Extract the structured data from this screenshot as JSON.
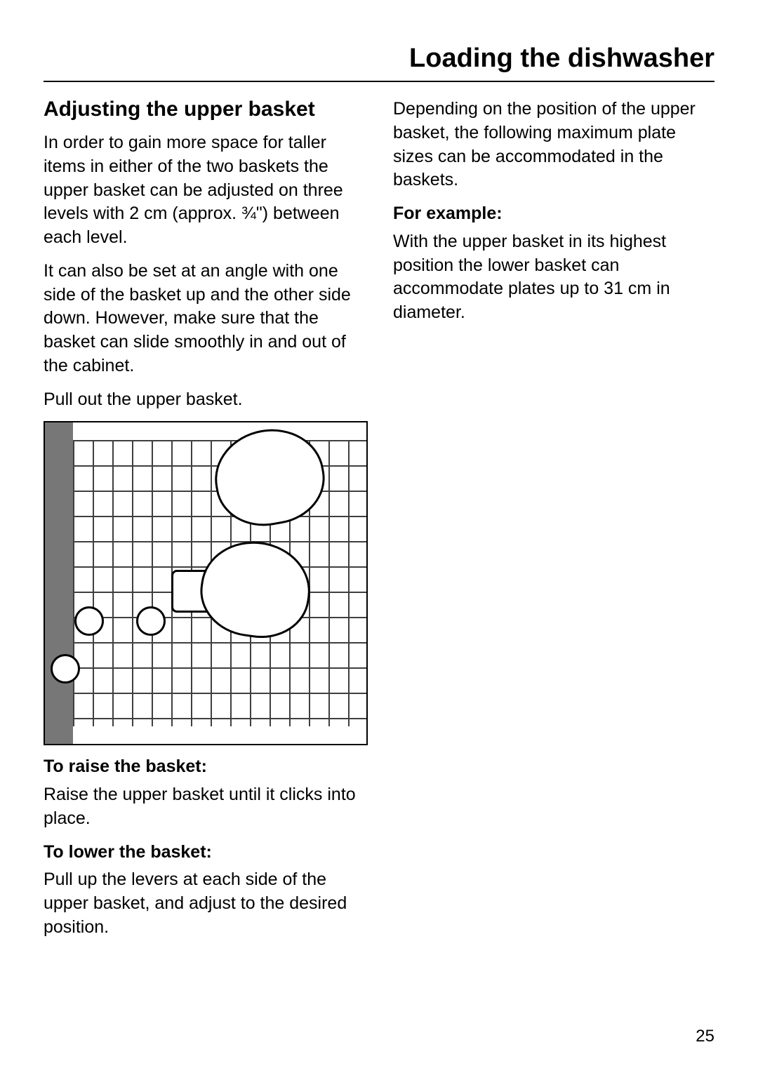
{
  "page_title": "Loading the dishwasher",
  "page_number": "25",
  "left": {
    "section_title": "Adjusting the upper basket",
    "p1": "In order to gain more space for taller items in either of the two baskets the upper basket can be adjusted on three levels with 2 cm (approx. ¾\") between each level.",
    "p2": "It can also be set at an angle with one side of the basket up and the other side down. However, make sure that the basket can slide smoothly in and out of the cabinet.",
    "p_instr1": "Pull out the upper basket.",
    "p_raise_head": "To raise the basket:",
    "p_raise": "Raise the upper basket until it clicks into place.",
    "p_lower_head": "To lower the basket:",
    "p_lower": "Pull up the levers at each side of the upper basket, and adjust to the desired position."
  },
  "right": {
    "p_depending": "Depending on the position of the upper basket, the following maximum plate sizes can be accommodated in the baskets.",
    "example_head": "For example:",
    "example_body": "With the upper basket in its highest position the lower basket can accommodate plates up to 31 cm in diameter."
  }
}
